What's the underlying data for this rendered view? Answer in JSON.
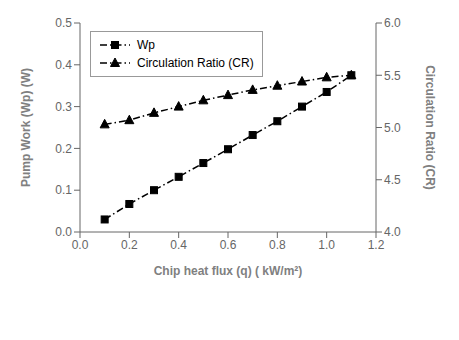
{
  "chart_data": {
    "type": "line",
    "x": [
      0.1,
      0.2,
      0.3,
      0.4,
      0.5,
      0.6,
      0.7,
      0.8,
      0.9,
      1.0,
      1.1
    ],
    "xlabel": "Chip heat flux (q) ( kW/m²)",
    "ylabel": "Pump Work (Wp) (W)",
    "y2label": "Circulation Ratio (CR)",
    "xlim": [
      0.0,
      1.2
    ],
    "xticks": [
      {
        "value": 0.0,
        "label": "0.0"
      },
      0.2,
      0.4,
      0.6,
      0.8,
      {
        "value": 1.0,
        "label": "1.0"
      },
      1.2
    ],
    "ylim": [
      0.0,
      0.5
    ],
    "yticks": [
      {
        "value": 0.0,
        "label": "0.0"
      },
      0.1,
      0.2,
      0.3,
      0.4,
      0.5
    ],
    "y2lim": [
      4.0,
      6.0
    ],
    "y2ticks": [
      {
        "value": 4.0,
        "label": "4.0"
      },
      4.5,
      {
        "value": 5.0,
        "label": "5.0"
      },
      5.5,
      {
        "value": 6.0,
        "label": "6.0"
      }
    ],
    "legend": "upper left",
    "grid": false,
    "series": [
      {
        "name": "Wp",
        "color": "#000000",
        "marker": "square",
        "line_style": "dashdot",
        "values": [
          0.03,
          0.067,
          0.1,
          0.132,
          0.165,
          0.198,
          0.232,
          0.265,
          0.3,
          0.335,
          0.375
        ]
      },
      {
        "name": "Circulation Ratio (CR)",
        "axis": "y2",
        "color": "#000000",
        "marker": "triangle",
        "line_style": "dashdot",
        "values": [
          5.03,
          5.07,
          5.14,
          5.2,
          5.26,
          5.31,
          5.36,
          5.4,
          5.44,
          5.48,
          5.5
        ]
      }
    ]
  }
}
